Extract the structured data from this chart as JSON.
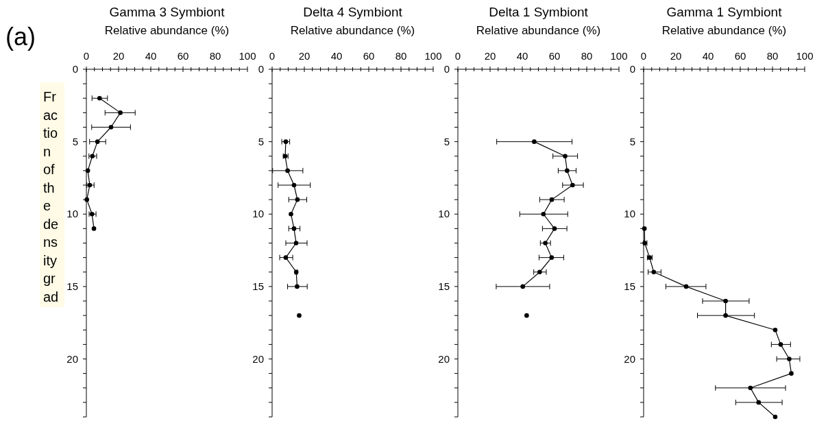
{
  "chart_data": [
    {
      "type": "line",
      "orientation": "horizontal",
      "title": "Gamma 3 Symbiont",
      "xlabel": "Relative abundance (%)",
      "ylabel": "Fraction of the density grad",
      "annotations": [
        "(a)"
      ],
      "xlim": [
        0,
        100
      ],
      "xticks": [
        0,
        {
          "value": 5,
          "label": null
        },
        {
          "value": 10,
          "label": null
        },
        {
          "value": 15,
          "label": null
        },
        20,
        {
          "value": 25,
          "label": null
        },
        {
          "value": 30,
          "label": null
        },
        {
          "value": 35,
          "label": null
        },
        40,
        {
          "value": 45,
          "label": null
        },
        {
          "value": 50,
          "label": null
        },
        {
          "value": 55,
          "label": null
        },
        60,
        {
          "value": 65,
          "label": null
        },
        {
          "value": 70,
          "label": null
        },
        {
          "value": 75,
          "label": null
        },
        80,
        {
          "value": 85,
          "label": null
        },
        {
          "value": 90,
          "label": null
        },
        {
          "value": 95,
          "label": null
        },
        100
      ],
      "ylim": [
        24,
        0
      ],
      "yticks": [
        0,
        {
          "value": 1,
          "label": null
        },
        {
          "value": 2,
          "label": null
        },
        {
          "value": 3,
          "label": null
        },
        {
          "value": 4,
          "label": null
        },
        5,
        {
          "value": 6,
          "label": null
        },
        {
          "value": 7,
          "label": null
        },
        {
          "value": 8,
          "label": null
        },
        {
          "value": 9,
          "label": null
        },
        10,
        {
          "value": 11,
          "label": null
        },
        {
          "value": 12,
          "label": null
        },
        {
          "value": 13,
          "label": null
        },
        {
          "value": 14,
          "label": null
        },
        15,
        {
          "value": 16,
          "label": null
        },
        {
          "value": 17,
          "label": null
        },
        {
          "value": 18,
          "label": null
        },
        {
          "value": 19,
          "label": null
        },
        20,
        {
          "value": 21,
          "label": null
        },
        {
          "value": 22,
          "label": null
        },
        {
          "value": 23,
          "label": null
        },
        {
          "value": 24,
          "label": null
        }
      ],
      "marker": "circle",
      "series": [
        {
          "color": "#000000",
          "x": [
            2,
            3,
            4,
            5,
            6,
            7,
            8,
            9,
            10,
            11
          ],
          "values": [
            8.2,
            21.1,
            15.3,
            6.9,
            3.7,
            0.9,
            2.1,
            0.3,
            3.5,
            4.7
          ],
          "errors": [
            [
              3.5,
              13.1
            ],
            [
              11.6,
              30.3
            ],
            [
              3.3,
              27.4
            ],
            [
              2.0,
              12.0
            ],
            [
              1.6,
              6.4
            ],
            null,
            [
              0.3,
              4.8
            ],
            null,
            [
              1.7,
              6.0
            ],
            null
          ]
        }
      ]
    },
    {
      "type": "line",
      "orientation": "horizontal",
      "title": "Delta 4 Symbiont",
      "xlabel": "Relative abundance (%)",
      "xlim": [
        0,
        100
      ],
      "xticks": [
        0,
        {
          "value": 5,
          "label": null
        },
        {
          "value": 10,
          "label": null
        },
        {
          "value": 15,
          "label": null
        },
        20,
        {
          "value": 25,
          "label": null
        },
        {
          "value": 30,
          "label": null
        },
        {
          "value": 35,
          "label": null
        },
        40,
        {
          "value": 45,
          "label": null
        },
        {
          "value": 50,
          "label": null
        },
        {
          "value": 55,
          "label": null
        },
        60,
        {
          "value": 65,
          "label": null
        },
        {
          "value": 70,
          "label": null
        },
        {
          "value": 75,
          "label": null
        },
        80,
        {
          "value": 85,
          "label": null
        },
        {
          "value": 90,
          "label": null
        },
        {
          "value": 95,
          "label": null
        },
        100
      ],
      "ylim": [
        24,
        0
      ],
      "yticks": [
        0,
        {
          "value": 1,
          "label": null
        },
        {
          "value": 2,
          "label": null
        },
        {
          "value": 3,
          "label": null
        },
        {
          "value": 4,
          "label": null
        },
        5,
        {
          "value": 6,
          "label": null
        },
        {
          "value": 7,
          "label": null
        },
        {
          "value": 8,
          "label": null
        },
        {
          "value": 9,
          "label": null
        },
        10,
        {
          "value": 11,
          "label": null
        },
        {
          "value": 12,
          "label": null
        },
        {
          "value": 13,
          "label": null
        },
        {
          "value": 14,
          "label": null
        },
        15,
        {
          "value": 16,
          "label": null
        },
        {
          "value": 17,
          "label": null
        },
        {
          "value": 18,
          "label": null
        },
        {
          "value": 19,
          "label": null
        },
        20,
        {
          "value": 21,
          "label": null
        },
        {
          "value": 22,
          "label": null
        },
        {
          "value": 23,
          "label": null
        },
        {
          "value": 24,
          "label": null
        }
      ],
      "marker": "circle",
      "series": [
        {
          "color": "#000000",
          "x": [
            5,
            6,
            7,
            8,
            9,
            10,
            11,
            12,
            13,
            14,
            15,
            16,
            17
          ],
          "values": [
            8.5,
            8.1,
            9.6,
            13.6,
            15.7,
            11.7,
            13.6,
            14.9,
            8.5,
            15.0,
            15.5,
            null,
            16.8
          ],
          "errors": [
            [
              6.0,
              10.9
            ],
            [
              6.9,
              9.9
            ],
            [
              0.3,
              19.1
            ],
            [
              3.7,
              23.7
            ],
            [
              10.3,
              21.5
            ],
            null,
            [
              10.3,
              17.3
            ],
            [
              8.5,
              21.7
            ],
            [
              4.7,
              12.8
            ],
            [
              14.2,
              15.7
            ],
            [
              9.6,
              21.8
            ],
            null,
            null
          ]
        }
      ]
    },
    {
      "type": "line",
      "orientation": "horizontal",
      "title": "Delta 1 Symbiont",
      "xlabel": "Relative abundance (%)",
      "xlim": [
        0,
        100
      ],
      "xticks": [
        0,
        {
          "value": 5,
          "label": null
        },
        {
          "value": 10,
          "label": null
        },
        {
          "value": 15,
          "label": null
        },
        20,
        {
          "value": 25,
          "label": null
        },
        {
          "value": 30,
          "label": null
        },
        {
          "value": 35,
          "label": null
        },
        40,
        {
          "value": 45,
          "label": null
        },
        {
          "value": 50,
          "label": null
        },
        {
          "value": 55,
          "label": null
        },
        60,
        {
          "value": 65,
          "label": null
        },
        {
          "value": 70,
          "label": null
        },
        {
          "value": 75,
          "label": null
        },
        80,
        {
          "value": 85,
          "label": null
        },
        {
          "value": 90,
          "label": null
        },
        {
          "value": 95,
          "label": null
        },
        100
      ],
      "ylim": [
        24,
        0
      ],
      "yticks": [
        0,
        {
          "value": 1,
          "label": null
        },
        {
          "value": 2,
          "label": null
        },
        {
          "value": 3,
          "label": null
        },
        {
          "value": 4,
          "label": null
        },
        5,
        {
          "value": 6,
          "label": null
        },
        {
          "value": 7,
          "label": null
        },
        {
          "value": 8,
          "label": null
        },
        {
          "value": 9,
          "label": null
        },
        10,
        {
          "value": 11,
          "label": null
        },
        {
          "value": 12,
          "label": null
        },
        {
          "value": 13,
          "label": null
        },
        {
          "value": 14,
          "label": null
        },
        15,
        {
          "value": 16,
          "label": null
        },
        {
          "value": 17,
          "label": null
        },
        {
          "value": 18,
          "label": null
        },
        {
          "value": 19,
          "label": null
        },
        20,
        {
          "value": 21,
          "label": null
        },
        {
          "value": 22,
          "label": null
        },
        {
          "value": 23,
          "label": null
        },
        {
          "value": 24,
          "label": null
        }
      ],
      "marker": "circle",
      "series": [
        {
          "color": "#000000",
          "x": [
            5,
            6,
            7,
            8,
            9,
            10,
            11,
            12,
            13,
            14,
            15,
            16,
            17
          ],
          "values": [
            47.4,
            66.6,
            67.8,
            71.2,
            58.3,
            53.1,
            60.0,
            54.3,
            58.2,
            50.8,
            40.3,
            null,
            42.7
          ],
          "errors": [
            [
              24.1,
              70.9
            ],
            [
              59.0,
              74.3
            ],
            [
              62.3,
              73.4
            ],
            [
              65.0,
              77.9
            ],
            [
              50.8,
              66.0
            ],
            [
              38.4,
              68.2
            ],
            [
              52.5,
              67.7
            ],
            [
              51.2,
              57.5
            ],
            [
              50.4,
              65.7
            ],
            [
              47.1,
              54.9
            ],
            [
              23.8,
              57.0
            ],
            null,
            null
          ]
        }
      ]
    },
    {
      "type": "line",
      "orientation": "horizontal",
      "title": "Gamma 1 Symbiont",
      "xlabel": "Relative abundance (%)",
      "xlim": [
        0,
        100
      ],
      "xticks": [
        0,
        {
          "value": 5,
          "label": null
        },
        {
          "value": 10,
          "label": null
        },
        {
          "value": 15,
          "label": null
        },
        20,
        {
          "value": 25,
          "label": null
        },
        {
          "value": 30,
          "label": null
        },
        {
          "value": 35,
          "label": null
        },
        40,
        {
          "value": 45,
          "label": null
        },
        {
          "value": 50,
          "label": null
        },
        {
          "value": 55,
          "label": null
        },
        60,
        {
          "value": 65,
          "label": null
        },
        {
          "value": 70,
          "label": null
        },
        {
          "value": 75,
          "label": null
        },
        80,
        {
          "value": 85,
          "label": null
        },
        {
          "value": 90,
          "label": null
        },
        {
          "value": 95,
          "label": null
        },
        100
      ],
      "ylim": [
        24,
        0
      ],
      "yticks": [
        0,
        {
          "value": 1,
          "label": null
        },
        {
          "value": 2,
          "label": null
        },
        {
          "value": 3,
          "label": null
        },
        {
          "value": 4,
          "label": null
        },
        5,
        {
          "value": 6,
          "label": null
        },
        {
          "value": 7,
          "label": null
        },
        {
          "value": 8,
          "label": null
        },
        {
          "value": 9,
          "label": null
        },
        10,
        {
          "value": 11,
          "label": null
        },
        {
          "value": 12,
          "label": null
        },
        {
          "value": 13,
          "label": null
        },
        {
          "value": 14,
          "label": null
        },
        15,
        {
          "value": 16,
          "label": null
        },
        {
          "value": 17,
          "label": null
        },
        {
          "value": 18,
          "label": null
        },
        {
          "value": 19,
          "label": null
        },
        20,
        {
          "value": 21,
          "label": null
        },
        {
          "value": 22,
          "label": null
        },
        {
          "value": 23,
          "label": null
        },
        {
          "value": 24,
          "label": null
        }
      ],
      "marker": "circle",
      "series": [
        {
          "color": "#000000",
          "x": [
            11,
            12,
            13,
            14,
            15,
            16,
            17,
            18,
            19,
            20,
            21,
            22,
            23,
            24
          ],
          "values": [
            0.5,
            0.7,
            3.7,
            6.3,
            26.4,
            50.9,
            50.9,
            81.7,
            85.1,
            90.4,
            91.7,
            66.3,
            71.4,
            81.7
          ],
          "errors": [
            null,
            [
              0,
              2.1
            ],
            [
              2.3,
              5.3
            ],
            [
              2.8,
              10.8
            ],
            [
              13.8,
              38.7
            ],
            [
              36.6,
              65.5
            ],
            [
              33.4,
              68.8
            ],
            null,
            [
              79.3,
              91.2
            ],
            [
              82.6,
              97
            ],
            null,
            [
              44.6,
              88.1
            ],
            [
              57.2,
              86.0
            ],
            null
          ]
        }
      ]
    }
  ]
}
